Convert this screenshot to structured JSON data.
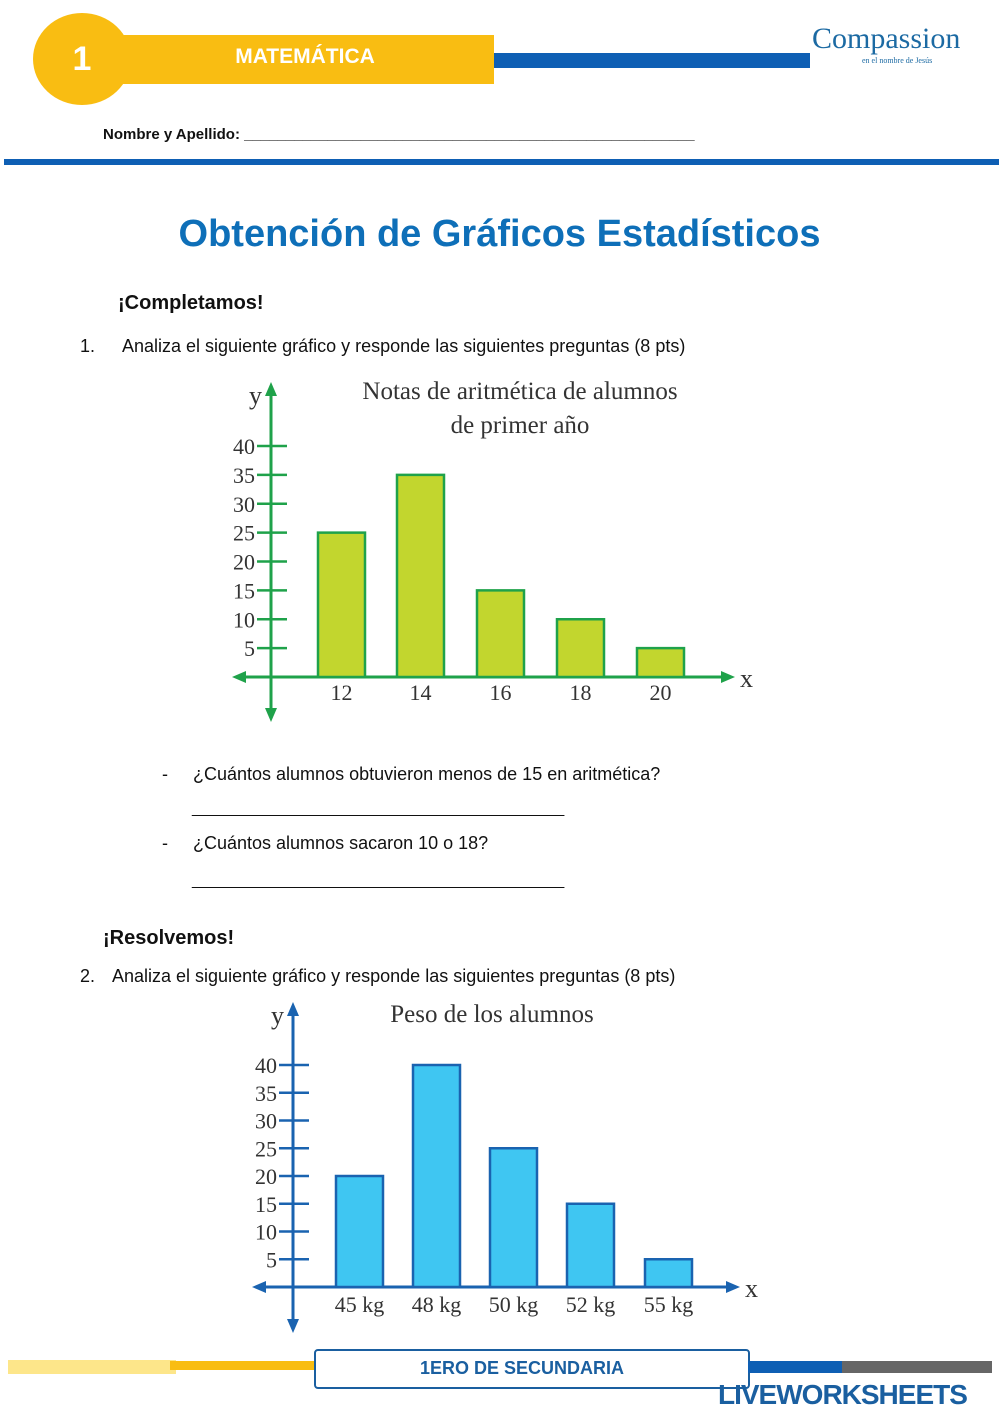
{
  "header": {
    "number": "1",
    "subject": "MATEMÁTICA",
    "logo": {
      "brand": "Compassion",
      "tagline": "en el nombre de Jesús"
    },
    "name_label": "Nombre y Apellido: ______________________________________________________"
  },
  "title": "Obtención de Gráficos Estadísticos",
  "section1": {
    "heading": "¡Completamos!",
    "item_number": "1.",
    "instruction": "Analiza el siguiente gráfico y responde las siguientes preguntas (8 pts)",
    "questions": [
      {
        "bullet": "-",
        "text": "¿Cuántos alumnos obtuvieron menos de 15 en aritmética?",
        "answer_line": "_______________________________________________"
      },
      {
        "bullet": "-",
        "text": "¿Cuántos alumnos sacaron 10 o 18?",
        "answer_line": "_______________________________________________"
      }
    ]
  },
  "section2": {
    "heading": "¡Resolvemos!",
    "item_number": "2.",
    "instruction": "Analiza el siguiente gráfico y responde las siguientes preguntas (8 pts)"
  },
  "footer": {
    "level": "1ERO DE SECUNDARIA",
    "watermark": "LIVEWORKSHEETS"
  },
  "chart_data": [
    {
      "type": "bar",
      "title": "Notas de aritmética de alumnos de primer año",
      "title_lines": [
        "Notas de aritmética de alumnos",
        "de primer año"
      ],
      "xlabel": "x",
      "ylabel": "y",
      "categories": [
        "12",
        "14",
        "16",
        "18",
        "20"
      ],
      "values": [
        25,
        35,
        15,
        10,
        5
      ],
      "yticks": [
        "5",
        "10",
        "15",
        "20",
        "25",
        "30",
        "35",
        "40"
      ],
      "ylim": [
        0,
        40
      ],
      "grid": false,
      "bar_color": "#c2d62e",
      "axis_color": "#1fa24a"
    },
    {
      "type": "bar",
      "title": "Peso de los alumnos",
      "title_lines": [
        "Peso de los alumnos"
      ],
      "xlabel": "x",
      "ylabel": "y",
      "categories": [
        "45 kg",
        "48 kg",
        "50 kg",
        "52 kg",
        "55 kg"
      ],
      "values": [
        20,
        40,
        25,
        15,
        5
      ],
      "yticks": [
        "5",
        "10",
        "15",
        "20",
        "25",
        "30",
        "35",
        "40"
      ],
      "ylim": [
        0,
        40
      ],
      "grid": false,
      "bar_color": "#3fc6f2",
      "axis_color": "#1a63b0"
    }
  ]
}
